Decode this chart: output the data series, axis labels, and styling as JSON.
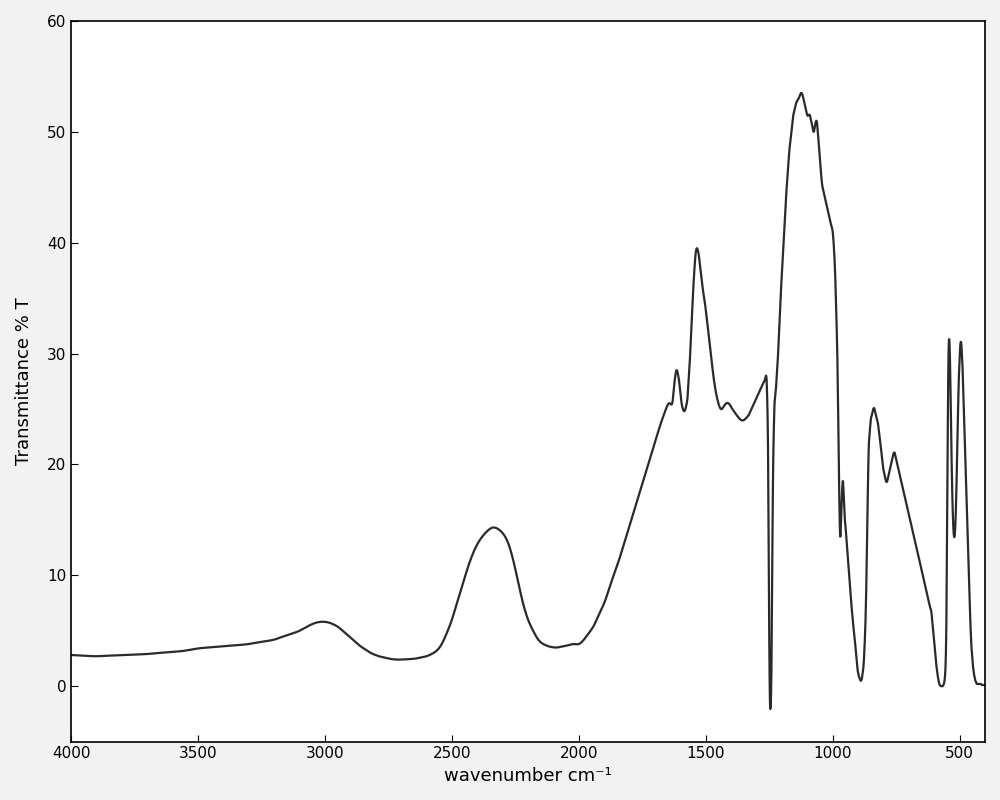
{
  "xlabel": "wavenumber cm⁻¹",
  "ylabel": "Transmittance % T",
  "xlim": [
    4000,
    400
  ],
  "ylim": [
    -5,
    60
  ],
  "yticks": [
    0,
    10,
    20,
    30,
    40,
    50,
    60
  ],
  "xticks": [
    4000,
    3500,
    3000,
    2500,
    2000,
    1500,
    1000,
    500
  ],
  "line_color": "#2a2a2a",
  "line_width": 1.6,
  "bg_color": "#f2f2f2",
  "control_points": [
    [
      4000,
      2.8
    ],
    [
      3950,
      2.75
    ],
    [
      3900,
      2.7
    ],
    [
      3850,
      2.75
    ],
    [
      3800,
      2.8
    ],
    [
      3750,
      2.85
    ],
    [
      3700,
      2.9
    ],
    [
      3650,
      3.0
    ],
    [
      3600,
      3.1
    ],
    [
      3550,
      3.2
    ],
    [
      3500,
      3.4
    ],
    [
      3450,
      3.5
    ],
    [
      3400,
      3.6
    ],
    [
      3350,
      3.7
    ],
    [
      3300,
      3.8
    ],
    [
      3250,
      4.0
    ],
    [
      3200,
      4.2
    ],
    [
      3150,
      4.6
    ],
    [
      3100,
      5.0
    ],
    [
      3050,
      5.6
    ],
    [
      3000,
      5.8
    ],
    [
      2980,
      5.7
    ],
    [
      2960,
      5.5
    ],
    [
      2940,
      5.2
    ],
    [
      2920,
      4.8
    ],
    [
      2900,
      4.4
    ],
    [
      2880,
      4.0
    ],
    [
      2860,
      3.6
    ],
    [
      2840,
      3.3
    ],
    [
      2820,
      3.0
    ],
    [
      2800,
      2.8
    ],
    [
      2780,
      2.65
    ],
    [
      2760,
      2.55
    ],
    [
      2740,
      2.45
    ],
    [
      2720,
      2.4
    ],
    [
      2700,
      2.4
    ],
    [
      2680,
      2.42
    ],
    [
      2660,
      2.45
    ],
    [
      2640,
      2.5
    ],
    [
      2620,
      2.6
    ],
    [
      2600,
      2.7
    ],
    [
      2580,
      2.9
    ],
    [
      2560,
      3.2
    ],
    [
      2540,
      3.8
    ],
    [
      2520,
      4.8
    ],
    [
      2500,
      6.0
    ],
    [
      2480,
      7.5
    ],
    [
      2460,
      9.0
    ],
    [
      2440,
      10.5
    ],
    [
      2420,
      11.8
    ],
    [
      2400,
      12.8
    ],
    [
      2380,
      13.5
    ],
    [
      2360,
      14.0
    ],
    [
      2340,
      14.3
    ],
    [
      2320,
      14.2
    ],
    [
      2300,
      13.8
    ],
    [
      2280,
      13.0
    ],
    [
      2260,
      11.5
    ],
    [
      2240,
      9.5
    ],
    [
      2220,
      7.5
    ],
    [
      2200,
      6.0
    ],
    [
      2180,
      5.0
    ],
    [
      2160,
      4.2
    ],
    [
      2140,
      3.8
    ],
    [
      2120,
      3.6
    ],
    [
      2100,
      3.5
    ],
    [
      2080,
      3.5
    ],
    [
      2060,
      3.6
    ],
    [
      2040,
      3.7
    ],
    [
      2020,
      3.8
    ],
    [
      2000,
      3.8
    ],
    [
      1980,
      4.2
    ],
    [
      1960,
      4.8
    ],
    [
      1940,
      5.5
    ],
    [
      1920,
      6.5
    ],
    [
      1900,
      7.5
    ],
    [
      1880,
      8.8
    ],
    [
      1860,
      10.2
    ],
    [
      1840,
      11.5
    ],
    [
      1820,
      13.0
    ],
    [
      1800,
      14.5
    ],
    [
      1780,
      16.0
    ],
    [
      1760,
      17.5
    ],
    [
      1740,
      19.0
    ],
    [
      1720,
      20.5
    ],
    [
      1700,
      22.0
    ],
    [
      1680,
      23.5
    ],
    [
      1660,
      24.8
    ],
    [
      1640,
      25.5
    ],
    [
      1630,
      25.8
    ],
    [
      1625,
      27.0
    ],
    [
      1620,
      28.0
    ],
    [
      1615,
      28.5
    ],
    [
      1610,
      28.2
    ],
    [
      1605,
      27.5
    ],
    [
      1600,
      26.5
    ],
    [
      1595,
      25.5
    ],
    [
      1590,
      25.0
    ],
    [
      1585,
      24.8
    ],
    [
      1580,
      25.0
    ],
    [
      1575,
      25.5
    ],
    [
      1570,
      26.5
    ],
    [
      1565,
      28.5
    ],
    [
      1560,
      30.5
    ],
    [
      1555,
      33.0
    ],
    [
      1550,
      35.5
    ],
    [
      1545,
      37.5
    ],
    [
      1540,
      39.0
    ],
    [
      1535,
      39.5
    ],
    [
      1530,
      39.2
    ],
    [
      1525,
      38.5
    ],
    [
      1520,
      37.5
    ],
    [
      1515,
      36.5
    ],
    [
      1510,
      35.5
    ],
    [
      1500,
      34.0
    ],
    [
      1490,
      32.0
    ],
    [
      1480,
      30.0
    ],
    [
      1470,
      28.0
    ],
    [
      1460,
      26.5
    ],
    [
      1450,
      25.5
    ],
    [
      1440,
      25.0
    ],
    [
      1430,
      25.2
    ],
    [
      1420,
      25.5
    ],
    [
      1410,
      25.5
    ],
    [
      1400,
      25.2
    ],
    [
      1390,
      24.8
    ],
    [
      1380,
      24.5
    ],
    [
      1370,
      24.2
    ],
    [
      1360,
      24.0
    ],
    [
      1350,
      24.0
    ],
    [
      1340,
      24.2
    ],
    [
      1330,
      24.5
    ],
    [
      1320,
      25.0
    ],
    [
      1310,
      25.5
    ],
    [
      1300,
      26.0
    ],
    [
      1290,
      26.5
    ],
    [
      1280,
      27.0
    ],
    [
      1270,
      27.5
    ],
    [
      1265,
      27.8
    ],
    [
      1262,
      28.0
    ],
    [
      1260,
      27.5
    ],
    [
      1258,
      26.0
    ],
    [
      1255,
      22.0
    ],
    [
      1253,
      16.0
    ],
    [
      1251,
      8.0
    ],
    [
      1249,
      2.0
    ],
    [
      1247,
      -1.5
    ],
    [
      1245,
      -2.0
    ],
    [
      1243,
      -1.0
    ],
    [
      1241,
      2.0
    ],
    [
      1239,
      7.0
    ],
    [
      1237,
      14.0
    ],
    [
      1235,
      19.0
    ],
    [
      1233,
      22.0
    ],
    [
      1231,
      24.0
    ],
    [
      1229,
      25.5
    ],
    [
      1227,
      26.0
    ],
    [
      1225,
      26.5
    ],
    [
      1223,
      27.0
    ],
    [
      1221,
      27.5
    ],
    [
      1220,
      28.0
    ],
    [
      1215,
      30.0
    ],
    [
      1210,
      32.5
    ],
    [
      1205,
      35.0
    ],
    [
      1200,
      37.5
    ],
    [
      1195,
      39.5
    ],
    [
      1190,
      41.5
    ],
    [
      1185,
      43.5
    ],
    [
      1180,
      45.5
    ],
    [
      1175,
      47.0
    ],
    [
      1170,
      48.5
    ],
    [
      1165,
      49.5
    ],
    [
      1160,
      50.5
    ],
    [
      1155,
      51.5
    ],
    [
      1150,
      52.0
    ],
    [
      1145,
      52.5
    ],
    [
      1140,
      52.8
    ],
    [
      1135,
      53.0
    ],
    [
      1130,
      53.2
    ],
    [
      1125,
      53.5
    ],
    [
      1120,
      53.4
    ],
    [
      1115,
      53.0
    ],
    [
      1110,
      52.5
    ],
    [
      1105,
      52.0
    ],
    [
      1100,
      51.5
    ],
    [
      1095,
      51.5
    ],
    [
      1090,
      51.5
    ],
    [
      1085,
      51.0
    ],
    [
      1080,
      50.5
    ],
    [
      1075,
      50.0
    ],
    [
      1070,
      50.5
    ],
    [
      1065,
      51.0
    ],
    [
      1060,
      50.5
    ],
    [
      1055,
      49.0
    ],
    [
      1050,
      47.5
    ],
    [
      1045,
      46.0
    ],
    [
      1040,
      45.0
    ],
    [
      1035,
      44.5
    ],
    [
      1030,
      44.0
    ],
    [
      1025,
      43.5
    ],
    [
      1020,
      43.0
    ],
    [
      1015,
      42.5
    ],
    [
      1010,
      42.0
    ],
    [
      1005,
      41.5
    ],
    [
      1000,
      41.0
    ],
    [
      995,
      39.5
    ],
    [
      990,
      37.0
    ],
    [
      985,
      33.0
    ],
    [
      980,
      27.5
    ],
    [
      978,
      24.0
    ],
    [
      976,
      20.5
    ],
    [
      974,
      17.0
    ],
    [
      972,
      14.5
    ],
    [
      970,
      13.5
    ],
    [
      968,
      14.0
    ],
    [
      966,
      15.5
    ],
    [
      964,
      17.0
    ],
    [
      962,
      18.0
    ],
    [
      960,
      18.5
    ],
    [
      958,
      18.0
    ],
    [
      956,
      17.0
    ],
    [
      954,
      16.0
    ],
    [
      952,
      15.0
    ],
    [
      950,
      14.5
    ],
    [
      945,
      13.0
    ],
    [
      940,
      11.5
    ],
    [
      935,
      10.0
    ],
    [
      930,
      8.5
    ],
    [
      925,
      7.0
    ],
    [
      920,
      5.8
    ],
    [
      915,
      4.5
    ],
    [
      910,
      3.5
    ],
    [
      908,
      3.0
    ],
    [
      906,
      2.5
    ],
    [
      904,
      2.0
    ],
    [
      902,
      1.5
    ],
    [
      900,
      1.2
    ],
    [
      898,
      1.0
    ],
    [
      896,
      0.8
    ],
    [
      894,
      0.7
    ],
    [
      892,
      0.6
    ],
    [
      890,
      0.5
    ],
    [
      888,
      0.5
    ],
    [
      886,
      0.6
    ],
    [
      884,
      0.8
    ],
    [
      882,
      1.2
    ],
    [
      880,
      1.5
    ],
    [
      878,
      2.0
    ],
    [
      876,
      2.8
    ],
    [
      874,
      3.8
    ],
    [
      872,
      5.0
    ],
    [
      870,
      6.5
    ],
    [
      868,
      8.5
    ],
    [
      866,
      11.0
    ],
    [
      864,
      14.0
    ],
    [
      862,
      17.0
    ],
    [
      860,
      19.5
    ],
    [
      858,
      21.5
    ],
    [
      856,
      22.5
    ],
    [
      854,
      23.0
    ],
    [
      852,
      23.5
    ],
    [
      850,
      24.0
    ],
    [
      845,
      24.5
    ],
    [
      840,
      25.0
    ],
    [
      835,
      25.0
    ],
    [
      830,
      24.5
    ],
    [
      825,
      24.0
    ],
    [
      820,
      23.5
    ],
    [
      815,
      22.5
    ],
    [
      810,
      21.5
    ],
    [
      805,
      20.5
    ],
    [
      800,
      19.5
    ],
    [
      795,
      19.0
    ],
    [
      790,
      18.5
    ],
    [
      785,
      18.5
    ],
    [
      780,
      19.0
    ],
    [
      775,
      19.5
    ],
    [
      770,
      20.0
    ],
    [
      765,
      20.5
    ],
    [
      760,
      21.0
    ],
    [
      755,
      21.0
    ],
    [
      750,
      20.5
    ],
    [
      745,
      20.0
    ],
    [
      740,
      19.5
    ],
    [
      735,
      19.0
    ],
    [
      730,
      18.5
    ],
    [
      725,
      18.0
    ],
    [
      720,
      17.5
    ],
    [
      715,
      17.0
    ],
    [
      710,
      16.5
    ],
    [
      705,
      16.0
    ],
    [
      700,
      15.5
    ],
    [
      695,
      15.0
    ],
    [
      690,
      14.5
    ],
    [
      685,
      14.0
    ],
    [
      680,
      13.5
    ],
    [
      675,
      13.0
    ],
    [
      670,
      12.5
    ],
    [
      665,
      12.0
    ],
    [
      660,
      11.5
    ],
    [
      655,
      11.0
    ],
    [
      650,
      10.5
    ],
    [
      645,
      10.0
    ],
    [
      640,
      9.5
    ],
    [
      635,
      9.0
    ],
    [
      630,
      8.5
    ],
    [
      625,
      8.0
    ],
    [
      620,
      7.5
    ],
    [
      615,
      7.0
    ],
    [
      610,
      6.5
    ],
    [
      608,
      6.0
    ],
    [
      606,
      5.5
    ],
    [
      604,
      5.0
    ],
    [
      602,
      4.5
    ],
    [
      600,
      4.0
    ],
    [
      598,
      3.5
    ],
    [
      596,
      3.0
    ],
    [
      594,
      2.5
    ],
    [
      592,
      2.0
    ],
    [
      590,
      1.5
    ],
    [
      588,
      1.2
    ],
    [
      586,
      0.9
    ],
    [
      584,
      0.6
    ],
    [
      582,
      0.4
    ],
    [
      580,
      0.2
    ],
    [
      578,
      0.1
    ],
    [
      576,
      0.05
    ],
    [
      574,
      0.0
    ],
    [
      572,
      0.0
    ],
    [
      570,
      0.0
    ],
    [
      568,
      0.0
    ],
    [
      566,
      0.0
    ],
    [
      564,
      0.1
    ],
    [
      562,
      0.2
    ],
    [
      560,
      0.4
    ],
    [
      558,
      0.8
    ],
    [
      556,
      1.5
    ],
    [
      554,
      3.0
    ],
    [
      552,
      6.0
    ],
    [
      550,
      11.0
    ],
    [
      548,
      18.0
    ],
    [
      546,
      25.0
    ],
    [
      544,
      29.5
    ],
    [
      542,
      31.2
    ],
    [
      540,
      31.0
    ],
    [
      538,
      29.5
    ],
    [
      536,
      27.0
    ],
    [
      534,
      24.0
    ],
    [
      532,
      21.0
    ],
    [
      530,
      18.5
    ],
    [
      528,
      16.5
    ],
    [
      526,
      15.0
    ],
    [
      524,
      14.0
    ],
    [
      522,
      13.5
    ],
    [
      520,
      13.5
    ],
    [
      518,
      14.0
    ],
    [
      516,
      15.0
    ],
    [
      514,
      16.5
    ],
    [
      512,
      18.5
    ],
    [
      510,
      21.0
    ],
    [
      508,
      23.0
    ],
    [
      506,
      25.0
    ],
    [
      504,
      27.0
    ],
    [
      502,
      28.5
    ],
    [
      500,
      29.5
    ],
    [
      498,
      30.5
    ],
    [
      496,
      31.0
    ],
    [
      494,
      31.0
    ],
    [
      492,
      30.5
    ],
    [
      490,
      29.5
    ],
    [
      488,
      28.5
    ],
    [
      486,
      27.0
    ],
    [
      484,
      25.5
    ],
    [
      482,
      24.0
    ],
    [
      480,
      22.5
    ],
    [
      478,
      21.0
    ],
    [
      476,
      19.5
    ],
    [
      474,
      18.0
    ],
    [
      472,
      16.5
    ],
    [
      470,
      15.0
    ],
    [
      468,
      13.5
    ],
    [
      466,
      12.0
    ],
    [
      464,
      10.5
    ],
    [
      462,
      9.0
    ],
    [
      460,
      7.5
    ],
    [
      458,
      6.0
    ],
    [
      456,
      4.8
    ],
    [
      454,
      3.8
    ],
    [
      452,
      3.0
    ],
    [
      450,
      2.5
    ],
    [
      448,
      2.0
    ],
    [
      446,
      1.5
    ],
    [
      444,
      1.2
    ],
    [
      442,
      0.9
    ],
    [
      440,
      0.7
    ],
    [
      438,
      0.5
    ],
    [
      436,
      0.4
    ],
    [
      434,
      0.3
    ],
    [
      432,
      0.2
    ],
    [
      430,
      0.2
    ],
    [
      428,
      0.2
    ],
    [
      426,
      0.2
    ],
    [
      424,
      0.2
    ],
    [
      422,
      0.2
    ],
    [
      420,
      0.2
    ],
    [
      418,
      0.2
    ],
    [
      416,
      0.2
    ],
    [
      414,
      0.15
    ],
    [
      412,
      0.1
    ],
    [
      410,
      0.1
    ],
    [
      408,
      0.1
    ],
    [
      406,
      0.1
    ],
    [
      404,
      0.1
    ],
    [
      400,
      0.1
    ]
  ]
}
